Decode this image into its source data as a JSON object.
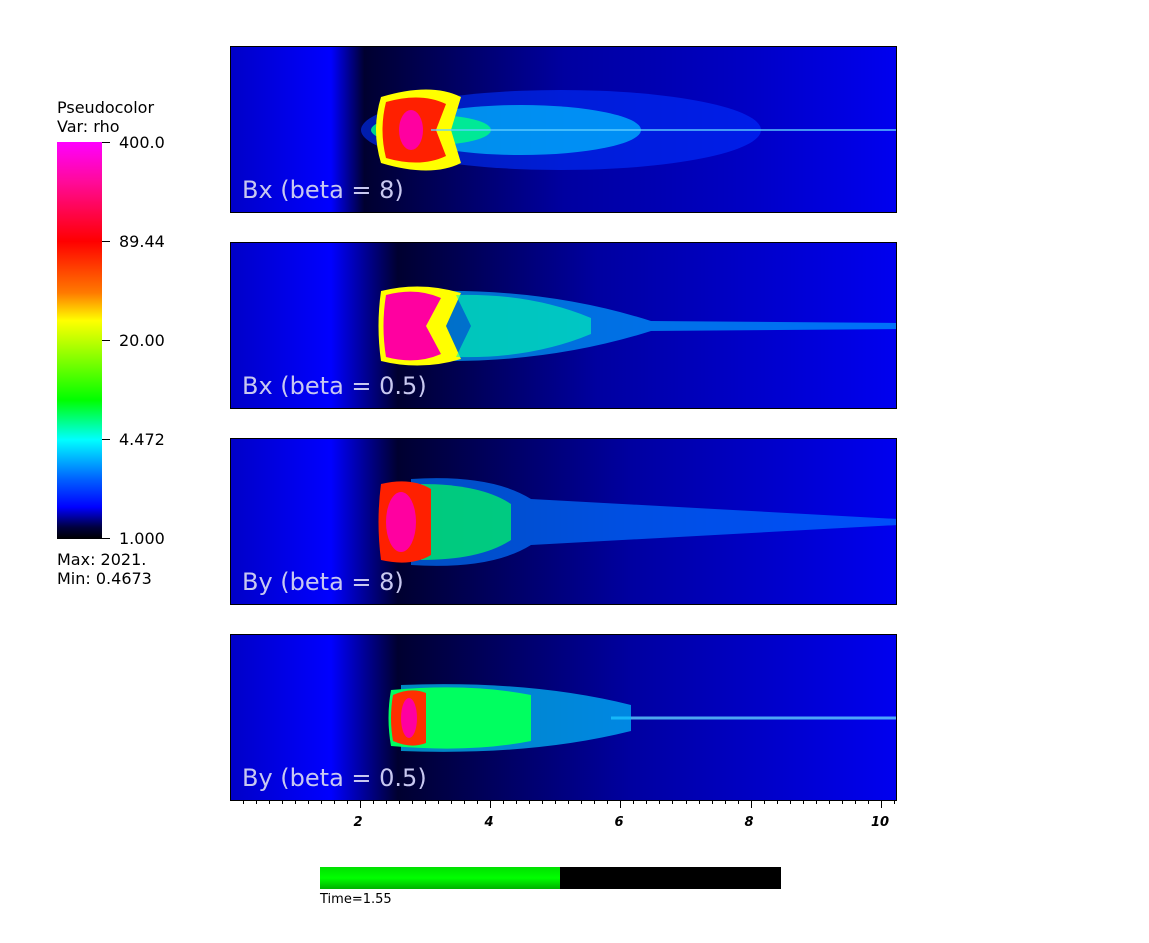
{
  "legend": {
    "title_line1": "Pseudocolor",
    "title_line2": "Var: rho",
    "ticks": [
      "400.0",
      "89.44",
      "20.00",
      "4.472",
      "1.000"
    ],
    "max_text": "Max:  2021.",
    "min_text": "Min:  0.4673"
  },
  "panels": [
    {
      "label": "Bx (beta = 8)"
    },
    {
      "label": "Bx (beta = 0.5)"
    },
    {
      "label": "By (beta = 8)"
    },
    {
      "label": "By (beta = 0.5)"
    }
  ],
  "x_axis": {
    "tick_labels": [
      "2",
      "4",
      "6",
      "8",
      "10"
    ],
    "range": [
      0,
      10.25
    ]
  },
  "time": {
    "label": "Time=1.55",
    "progress": 0.52
  },
  "colors": {
    "background_blue": "#0000f0",
    "jet_core": "#ff00a0",
    "panel_text": "#c8c8f0"
  }
}
